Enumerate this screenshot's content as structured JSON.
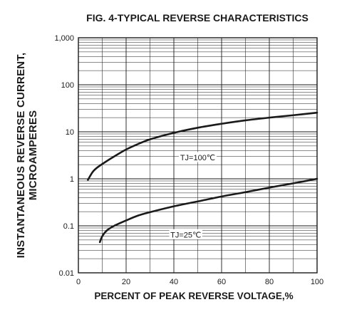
{
  "chart_data": {
    "type": "line",
    "title": "FIG. 4-TYPICAL REVERSE CHARACTERISTICS",
    "xlabel": "PERCENT OF PEAK REVERSE VOLTAGE,%",
    "ylabel_lines": [
      "INSTANTANEOUS REVERSE CURRENT,",
      "MICROAMPERES"
    ],
    "xlim": [
      0,
      100
    ],
    "ylim": [
      0.01,
      1000
    ],
    "yscale": "log",
    "grid": true,
    "x_ticks": [
      "0",
      "20",
      "40",
      "60",
      "80",
      "100"
    ],
    "x_tick_values": [
      0,
      20,
      40,
      60,
      80,
      100
    ],
    "y_ticks": [
      "0.01",
      "0.1",
      "1",
      "10",
      "100",
      "1,000"
    ],
    "y_tick_values": [
      0.01,
      0.1,
      1,
      10,
      100,
      1000
    ],
    "series": [
      {
        "name": "TJ=100℃",
        "x": [
          4,
          6,
          8,
          12,
          16,
          20,
          25,
          30,
          40,
          50,
          60,
          70,
          80,
          90,
          100
        ],
        "y": [
          0.95,
          1.4,
          1.75,
          2.4,
          3.2,
          4.2,
          5.5,
          6.9,
          9.5,
          12.2,
          14.8,
          17.5,
          20.0,
          22.5,
          25.5
        ]
      },
      {
        "name": "TJ=25℃",
        "x": [
          9,
          10,
          12,
          15,
          20,
          25,
          30,
          40,
          50,
          60,
          70,
          80,
          90,
          100
        ],
        "y": [
          0.045,
          0.06,
          0.08,
          0.1,
          0.13,
          0.165,
          0.195,
          0.26,
          0.33,
          0.42,
          0.52,
          0.65,
          0.8,
          1.0
        ]
      }
    ]
  }
}
